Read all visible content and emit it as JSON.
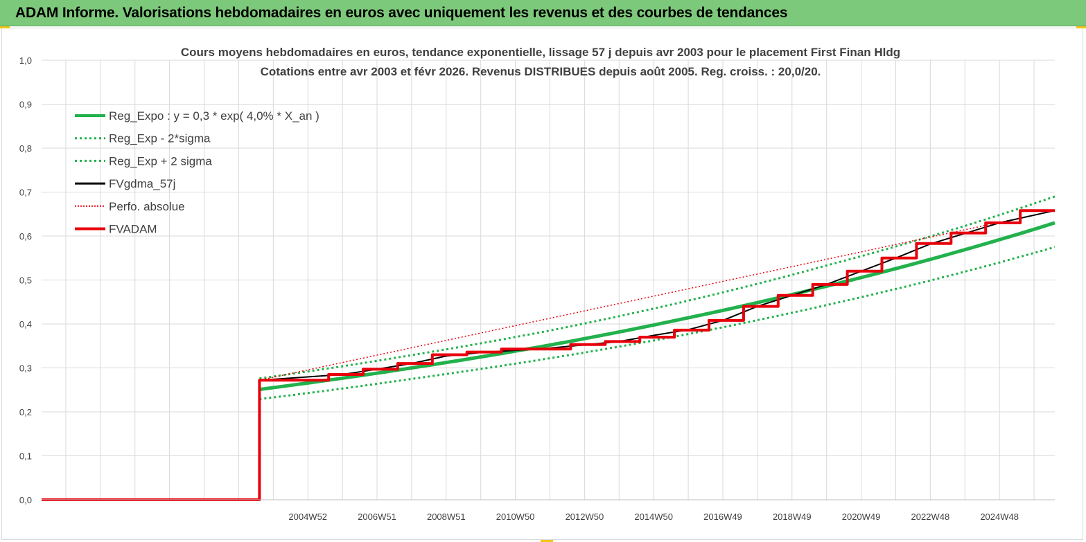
{
  "banner": {
    "title": "ADAM Informe. Valorisations hebdomadaires en euros avec uniquement les revenus et des courbes de tendances"
  },
  "colors": {
    "banner": "#7dc97b",
    "reg_expo": "#22b14c",
    "bands": "#22b14c",
    "fvgdma": "#000000",
    "perfo": "#e8000b",
    "fvadam": "#e8000b",
    "grid": "#d9d9d9"
  },
  "chart_data": {
    "type": "line",
    "title_line1": "Cours moyens hebdomadaires en euros, tendance exponentielle, lissage 57 j depuis avr 2003 pour le placement First Finan Hldg",
    "title_line2": "Cotations entre avr 2003 et févr 2026. Revenus DISTRIBUES depuis août 2005. Reg. croiss. : 20,0/20.",
    "ylim": [
      0,
      1
    ],
    "y_ticks": [
      "0,0",
      "0,1",
      "0,2",
      "0,3",
      "0,4",
      "0,5",
      "0,6",
      "0,7",
      "0,8",
      "0,9",
      "1,0"
    ],
    "x_range": [
      1997.3,
      2026.6
    ],
    "x_tick_labels": [
      "2004W52",
      "2006W51",
      "2008W51",
      "2010W50",
      "2012W50",
      "2014W50",
      "2016W49",
      "2018W49",
      "2020W49",
      "2022W48",
      "2024W48"
    ],
    "x_tick_years": [
      2005.0,
      2007.0,
      2009.0,
      2011.0,
      2013.0,
      2015.0,
      2017.0,
      2019.0,
      2021.0,
      2023.0,
      2025.0
    ],
    "grid": true,
    "legend_position": "top-left",
    "series": [
      {
        "name": "Reg_Expo : y = 0,3 * exp( 4,0% *  X_an )",
        "style": "solid-thick",
        "x": [
          2003.6,
          2008.0,
          2012.0,
          2016.0,
          2020.0,
          2024.0,
          2026.6
        ],
        "y": [
          0.251,
          0.3,
          0.352,
          0.414,
          0.486,
          0.569,
          0.63
        ]
      },
      {
        "name": "Reg_Exp - 2*sigma",
        "style": "dotted",
        "x": [
          2003.6,
          2008.0,
          2012.0,
          2016.0,
          2020.0,
          2024.0,
          2026.6
        ],
        "y": [
          0.229,
          0.275,
          0.322,
          0.377,
          0.443,
          0.519,
          0.575
        ]
      },
      {
        "name": "Reg_Exp + 2 sigma",
        "style": "dotted",
        "x": [
          2003.6,
          2008.0,
          2012.0,
          2016.0,
          2020.0,
          2024.0,
          2026.6
        ],
        "y": [
          0.276,
          0.329,
          0.385,
          0.453,
          0.533,
          0.623,
          0.69
        ]
      },
      {
        "name": "FVgdma_57j",
        "style": "solid-thin",
        "x": [
          1997.3,
          2003.6,
          2003.6,
          2006.0,
          2007.0,
          2008.0,
          2009.0,
          2010.0,
          2012.0,
          2014.0,
          2015.0,
          2016.0,
          2017.0,
          2018.0,
          2019.0,
          2020.0,
          2021.0,
          2022.0,
          2023.0,
          2024.0,
          2025.0,
          2026.6
        ],
        "y": [
          0.0,
          0.0,
          0.272,
          0.285,
          0.297,
          0.31,
          0.327,
          0.335,
          0.345,
          0.36,
          0.374,
          0.387,
          0.408,
          0.44,
          0.465,
          0.49,
          0.52,
          0.55,
          0.582,
          0.606,
          0.63,
          0.658
        ]
      },
      {
        "name": "Perfo. absolue",
        "style": "dotted",
        "x": [
          1997.3,
          2003.6,
          2003.6,
          2026.6
        ],
        "y": [
          0.0,
          0.0,
          0.272,
          0.658
        ]
      },
      {
        "name": "FVADAM",
        "style": "step",
        "x": [
          1997.3,
          2003.6,
          2003.6,
          2005.6,
          2005.6,
          2006.6,
          2006.6,
          2007.6,
          2007.6,
          2008.6,
          2008.6,
          2009.6,
          2009.6,
          2010.6,
          2010.6,
          2012.6,
          2012.6,
          2013.6,
          2013.6,
          2014.6,
          2014.6,
          2015.6,
          2015.6,
          2016.6,
          2016.6,
          2017.6,
          2017.6,
          2018.6,
          2018.6,
          2019.6,
          2019.6,
          2020.6,
          2020.6,
          2021.6,
          2021.6,
          2022.6,
          2022.6,
          2023.6,
          2023.6,
          2024.6,
          2024.6,
          2025.6,
          2025.6,
          2026.6
        ],
        "y": [
          0.0,
          0.0,
          0.272,
          0.272,
          0.285,
          0.285,
          0.297,
          0.297,
          0.31,
          0.31,
          0.33,
          0.33,
          0.336,
          0.336,
          0.343,
          0.343,
          0.353,
          0.353,
          0.36,
          0.36,
          0.37,
          0.37,
          0.386,
          0.386,
          0.408,
          0.408,
          0.44,
          0.44,
          0.465,
          0.465,
          0.49,
          0.49,
          0.52,
          0.52,
          0.55,
          0.55,
          0.583,
          0.583,
          0.607,
          0.607,
          0.63,
          0.63,
          0.658,
          0.658
        ]
      }
    ]
  }
}
